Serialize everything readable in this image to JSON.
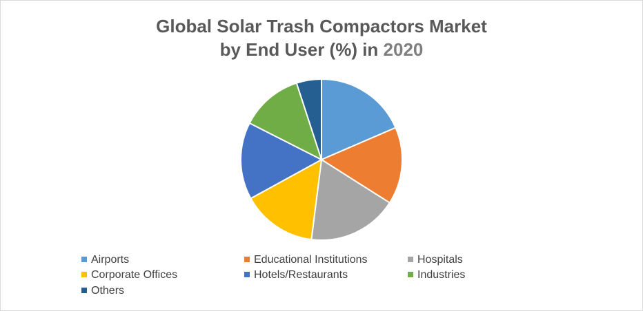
{
  "chart_data": {
    "type": "pie",
    "title_line1": "Global Solar Trash Compactors Market",
    "title_line2_prefix": "by End User (%) in",
    "title_year": "2020",
    "slices": [
      {
        "label": "Airports",
        "value": 18.5,
        "color": "#5B9BD5"
      },
      {
        "label": "Educational Institutions",
        "value": 15.5,
        "color": "#ED7D31"
      },
      {
        "label": "Hospitals",
        "value": 18.0,
        "color": "#A5A5A5"
      },
      {
        "label": "Corporate Offices",
        "value": 15.0,
        "color": "#FFC000"
      },
      {
        "label": "Hotels/Restaurants",
        "value": 15.5,
        "color": "#4472C4"
      },
      {
        "label": "Industries",
        "value": 12.5,
        "color": "#70AD47"
      },
      {
        "label": "Others",
        "value": 5.0,
        "color": "#255E91"
      }
    ],
    "legend_position": "bottom"
  }
}
